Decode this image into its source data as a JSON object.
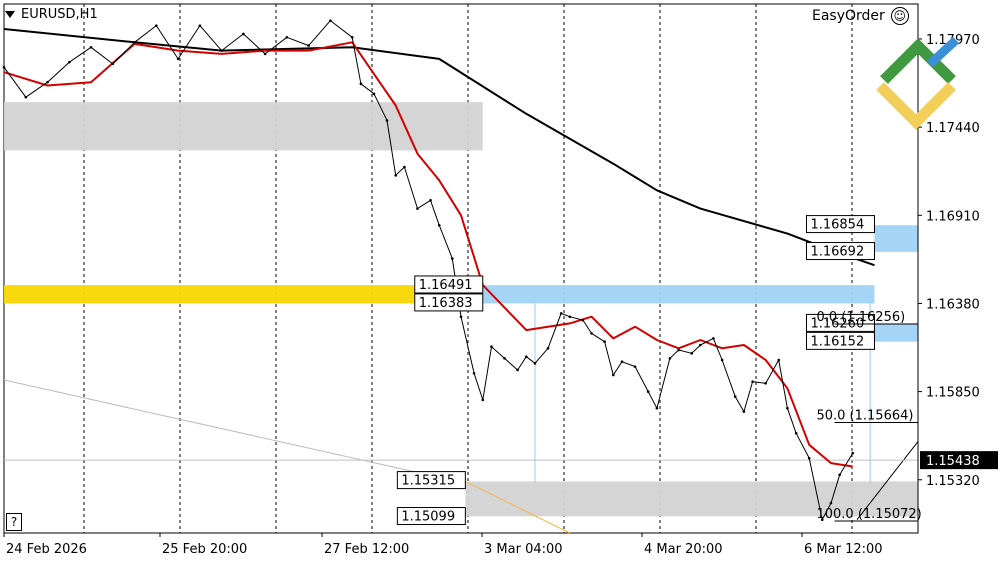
{
  "header": {
    "symbol": "EURUSD,H1",
    "plugin": "EasyOrder",
    "smiley": "☺",
    "help": "?"
  },
  "colors": {
    "bull_candle": "#000000",
    "bear_candle": "#000000",
    "ma_fast": "#d40000",
    "ma_slow": "#000000",
    "zone_gray": "#d3d3d3",
    "zone_blue": "#9fd3f5",
    "zone_yellow": "#f7d700",
    "logo_green": "#3f9a3f",
    "logo_blue": "#3b8fd8",
    "logo_yellow": "#f3cf5a",
    "current_price_bg": "#000000"
  },
  "icons": {
    "logo": "litefinance-logo-icon",
    "menu": "triangle-down-icon"
  },
  "chart_data": {
    "type": "line",
    "title": "EURUSD,H1",
    "ylim": [
      1.15,
      1.1818
    ],
    "y_ticks": [
      "1.17970",
      "1.17440",
      "1.16910",
      "1.16380",
      "1.15850",
      "1.15320"
    ],
    "x_ticks": [
      "24 Feb 2026",
      "25 Feb 20:00",
      "27 Feb 12:00",
      "3 Mar 04:00",
      "4 Mar 20:00",
      "6 Mar 12:00"
    ],
    "current_price": "1.15438",
    "series": [
      {
        "name": "",
        "kind": "ma_slow",
        "x": [
          0,
          30,
          50,
          80,
          100,
          120,
          140,
          150,
          160,
          180,
          190,
          200
        ],
        "y": [
          1.1803,
          1.1795,
          1.179,
          1.1792,
          1.1785,
          1.1752,
          1.1722,
          1.1706,
          1.1695,
          1.168,
          1.167,
          1.1661
        ]
      },
      {
        "name": "",
        "kind": "ma_fast",
        "x": [
          0,
          10,
          20,
          30,
          40,
          50,
          60,
          70,
          80,
          90,
          95,
          100,
          105,
          110,
          120,
          130,
          135,
          140,
          145,
          150,
          155,
          160,
          165,
          170,
          175,
          180,
          185,
          190,
          195
        ],
        "y": [
          1.1777,
          1.1769,
          1.1771,
          1.1794,
          1.179,
          1.1788,
          1.179,
          1.179,
          1.1795,
          1.1757,
          1.1728,
          1.1712,
          1.1691,
          1.1649,
          1.1622,
          1.1626,
          1.163,
          1.1617,
          1.1624,
          1.1616,
          1.1611,
          1.1616,
          1.1611,
          1.1613,
          1.1604,
          1.1587,
          1.1553,
          1.1542,
          1.154
        ]
      },
      {
        "name": "",
        "kind": "price",
        "x": [
          0,
          5,
          10,
          15,
          20,
          25,
          30,
          35,
          40,
          45,
          50,
          55,
          60,
          65,
          70,
          75,
          80,
          82,
          85,
          88,
          90,
          92,
          95,
          98,
          100,
          103,
          105,
          108,
          110,
          112,
          115,
          118,
          120,
          122,
          125,
          128,
          130,
          133,
          135,
          138,
          140,
          142,
          145,
          148,
          150,
          153,
          155,
          158,
          160,
          163,
          165,
          168,
          170,
          172,
          175,
          178,
          180,
          182,
          185,
          188,
          190,
          192,
          195
        ],
        "y": [
          1.178,
          1.1762,
          1.1771,
          1.1783,
          1.1792,
          1.1782,
          1.1795,
          1.1805,
          1.1785,
          1.1805,
          1.179,
          1.18,
          1.1788,
          1.1798,
          1.1793,
          1.1808,
          1.1798,
          1.177,
          1.1764,
          1.1748,
          1.1715,
          1.172,
          1.1695,
          1.17,
          1.1685,
          1.1665,
          1.163,
          1.1596,
          1.158,
          1.1612,
          1.1605,
          1.1598,
          1.1606,
          1.1602,
          1.1611,
          1.1632,
          1.163,
          1.1628,
          1.162,
          1.1615,
          1.1595,
          1.1603,
          1.16,
          1.1585,
          1.1575,
          1.1605,
          1.161,
          1.1608,
          1.1613,
          1.1617,
          1.1604,
          1.1582,
          1.1573,
          1.1591,
          1.159,
          1.1604,
          1.1575,
          1.156,
          1.1545,
          1.1508,
          1.1518,
          1.1535,
          1.1548
        ]
      }
    ],
    "zones": [
      {
        "kind": "gray",
        "x0": 0,
        "x1": 110,
        "y0": 1.173,
        "y1": 1.1759
      },
      {
        "kind": "yellow",
        "x0": 0,
        "x1": 110,
        "y0": 1.1638,
        "y1": 1.1649
      },
      {
        "kind": "blue",
        "x0": 110,
        "x1": 200,
        "y0": 1.1638,
        "y1": 1.1649
      },
      {
        "kind": "blue",
        "x0": 200,
        "x1": 210,
        "y0": 1.1669,
        "y1": 1.1685
      },
      {
        "kind": "blue",
        "x0": 200,
        "x1": 210,
        "y0": 1.1615,
        "y1": 1.1626
      },
      {
        "kind": "gray",
        "x0": 106,
        "x1": 210,
        "y0": 1.151,
        "y1": 1.1531
      }
    ],
    "levels": [
      {
        "label": "1.16854",
        "x": 200,
        "y": 1.16854
      },
      {
        "label": "1.16692",
        "x": 200,
        "y": 1.16692
      },
      {
        "label": "1.16491",
        "x": 110,
        "y": 1.16491
      },
      {
        "label": "1.16383",
        "x": 110,
        "y": 1.16383
      },
      {
        "label": "1.16260",
        "x": 200,
        "y": 1.1626
      },
      {
        "label": "1.16152",
        "x": 200,
        "y": 1.16152
      },
      {
        "label": "1.15315",
        "x": 106,
        "y": 1.15315
      },
      {
        "label": "1.15099",
        "x": 106,
        "y": 1.15099
      }
    ],
    "fib_labels": [
      {
        "label": "0.0 (1.16256)",
        "x": 200,
        "y": 1.16256
      },
      {
        "label": "50.0 (1.15664)",
        "x": 200,
        "y": 1.15664
      },
      {
        "label": "100.0 (1.15072)",
        "x": 200,
        "y": 1.15072
      }
    ],
    "grid": true,
    "legend": "none"
  }
}
